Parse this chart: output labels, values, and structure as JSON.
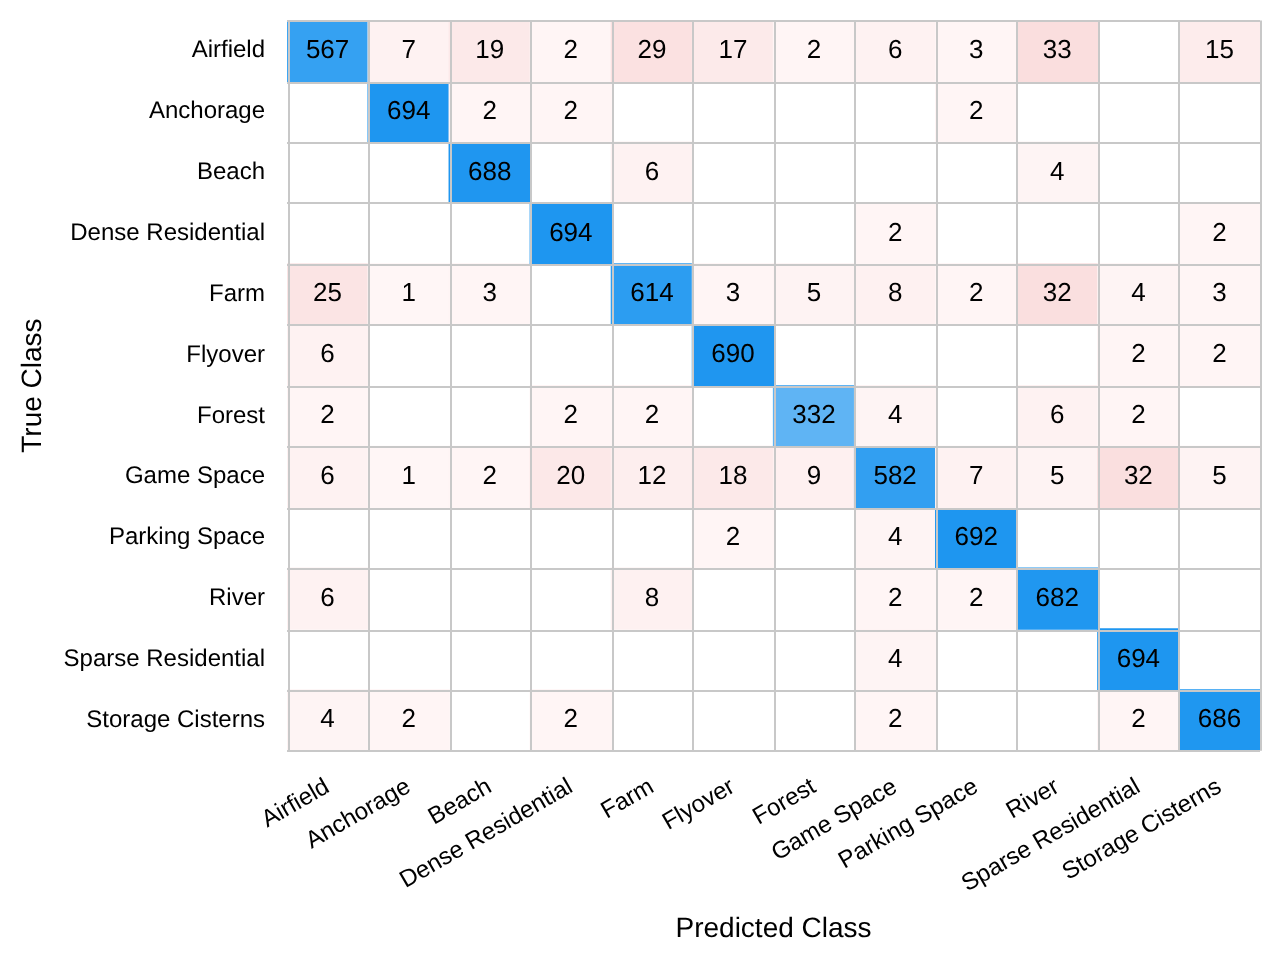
{
  "chart_data": {
    "type": "heatmap",
    "xlabel": "Predicted Class",
    "ylabel": "True Class",
    "data_labels": true,
    "categories": [
      "Airfield",
      "Anchorage",
      "Beach",
      "Dense Residential",
      "Farm",
      "Flyover",
      "Forest",
      "Game Space",
      "Parking Space",
      "River",
      "Sparse Residential",
      "Storage Cisterns"
    ],
    "y_categories": [
      "Airfield",
      "Anchorage",
      "Beach",
      "Dense Residential",
      "Farm",
      "Flyover",
      "Forest",
      "Game Space",
      "Parking Space",
      "River",
      "Sparse Residential",
      "Storage Cisterns"
    ],
    "cells": [
      [
        567,
        7,
        19,
        2,
        29,
        17,
        2,
        6,
        3,
        33,
        null,
        15
      ],
      [
        null,
        694,
        2,
        2,
        null,
        null,
        null,
        null,
        2,
        null,
        null,
        null
      ],
      [
        null,
        null,
        688,
        null,
        6,
        null,
        null,
        null,
        null,
        4,
        null,
        null
      ],
      [
        null,
        null,
        null,
        694,
        null,
        null,
        null,
        2,
        null,
        null,
        null,
        2
      ],
      [
        25,
        1,
        3,
        null,
        614,
        3,
        5,
        8,
        2,
        32,
        4,
        3
      ],
      [
        6,
        null,
        null,
        null,
        null,
        690,
        null,
        null,
        null,
        null,
        2,
        2
      ],
      [
        2,
        null,
        null,
        2,
        2,
        null,
        332,
        4,
        null,
        6,
        2,
        null
      ],
      [
        6,
        1,
        2,
        20,
        12,
        18,
        9,
        582,
        7,
        5,
        32,
        5
      ],
      [
        null,
        null,
        null,
        null,
        null,
        2,
        null,
        4,
        692,
        null,
        null,
        null
      ],
      [
        6,
        null,
        null,
        null,
        8,
        null,
        null,
        2,
        2,
        682,
        null,
        null
      ],
      [
        null,
        null,
        null,
        null,
        null,
        null,
        null,
        4,
        null,
        null,
        694,
        null
      ],
      [
        4,
        2,
        null,
        2,
        null,
        null,
        null,
        2,
        null,
        null,
        2,
        686
      ]
    ]
  }
}
